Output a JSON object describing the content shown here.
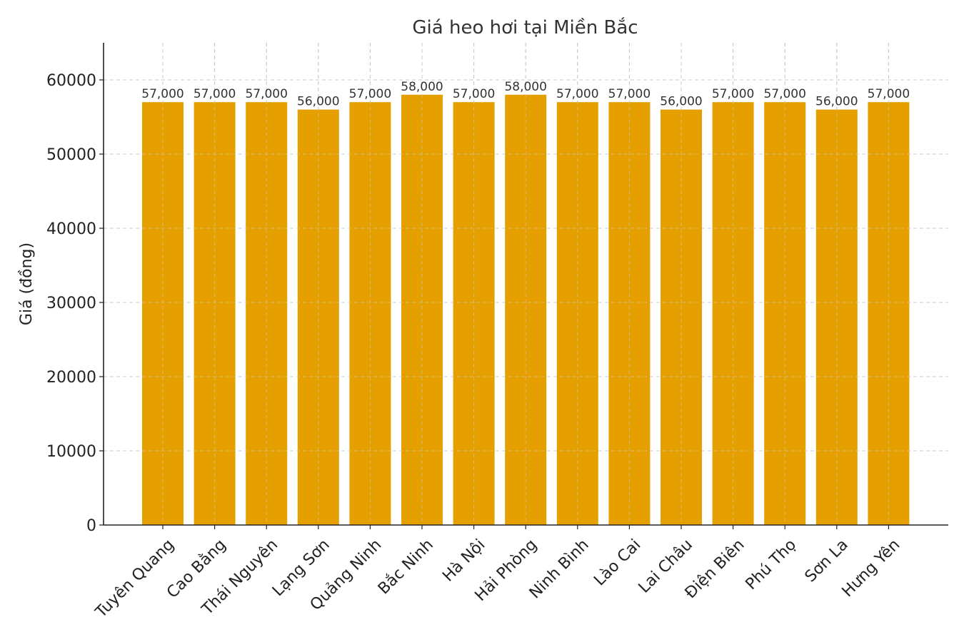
{
  "chart_data": {
    "type": "bar",
    "title": "Giá heo hơi tại Miền Bắc",
    "xlabel": "",
    "ylabel": "Giá (đồng)",
    "ylim": [
      0,
      65000
    ],
    "yticks": [
      0,
      10000,
      20000,
      30000,
      40000,
      50000,
      60000
    ],
    "grid": true,
    "bar_color": "#E5A000",
    "categories": [
      "Tuyên Quang",
      "Cao Bằng",
      "Thái Nguyên",
      "Lạng Sơn",
      "Quảng Ninh",
      "Bắc Ninh",
      "Hà Nội",
      "Hải Phòng",
      "Ninh Bình",
      "Lào Cai",
      "Lai Châu",
      "Điện Biên",
      "Phú Thọ",
      "Sơn La",
      "Hưng Yên"
    ],
    "values": [
      57000,
      57000,
      57000,
      56000,
      57000,
      58000,
      57000,
      58000,
      57000,
      57000,
      56000,
      57000,
      57000,
      56000,
      57000
    ],
    "data_labels": [
      "57,000",
      "57,000",
      "57,000",
      "56,000",
      "57,000",
      "58,000",
      "57,000",
      "58,000",
      "57,000",
      "57,000",
      "56,000",
      "57,000",
      "57,000",
      "56,000",
      "57,000"
    ]
  }
}
